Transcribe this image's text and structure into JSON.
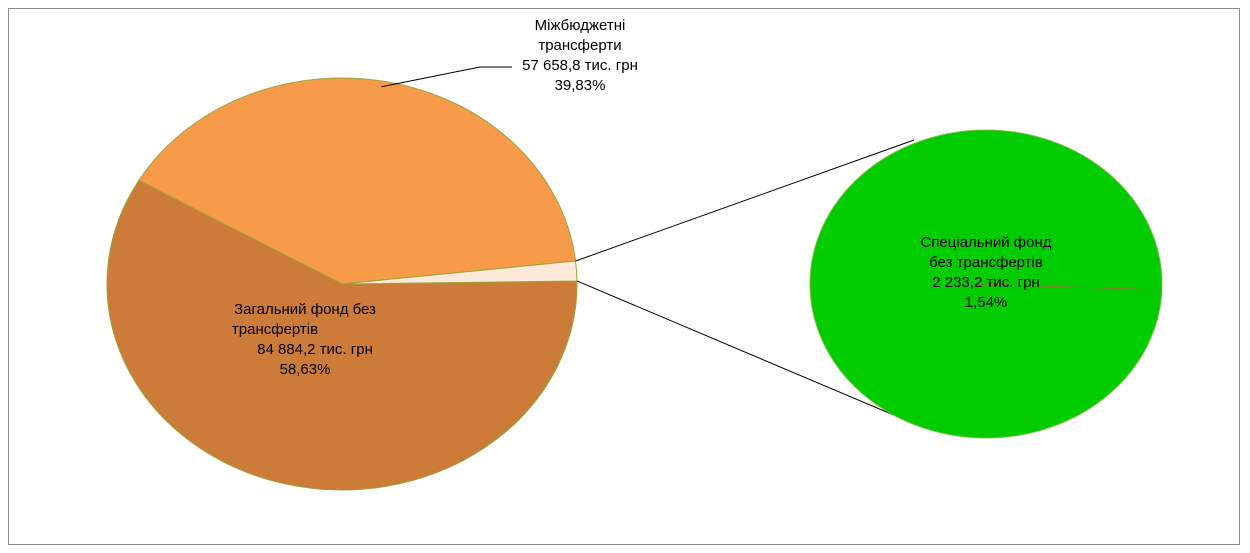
{
  "chart_data": {
    "type": "pie",
    "variant": "pie-of-pie",
    "slices": [
      {
        "name": "Загальний фонд без трансфертів",
        "value": 84884.2,
        "percent": 58.63,
        "label_lines": [
          "Загальний фонд без",
          "трансфертів",
          "84 884,2 тис. грн",
          "58,63%"
        ],
        "color": "#CC7B38"
      },
      {
        "name": "Міжбюджетні трансферти",
        "value": 57658.8,
        "percent": 39.83,
        "label_lines": [
          "Міжбюджетні",
          "трансферти",
          "57 658,8 тис. грн",
          "39,83%"
        ],
        "color": "#F79A4A"
      },
      {
        "name": "Інші",
        "value": 2233.2,
        "percent": 1.54,
        "label_lines": [],
        "color": "#FDE9D9"
      }
    ],
    "secondary_pie": {
      "slices": [
        {
          "name": "Спеціальний фонд без трансфертів",
          "value": 2233.2,
          "percent": 1.54,
          "label_lines": [
            "Спеціальний фонд",
            "без трансфертів",
            "2 233,2 тис. грн",
            "1,54%"
          ],
          "color": "#00CC00"
        }
      ]
    },
    "legend": "none"
  },
  "colors": {
    "slice_outline": "#9BA43A",
    "secondary_outline": "#7FBF3F",
    "leader_line": "#000000",
    "frame_border": "#8c8c8c"
  }
}
